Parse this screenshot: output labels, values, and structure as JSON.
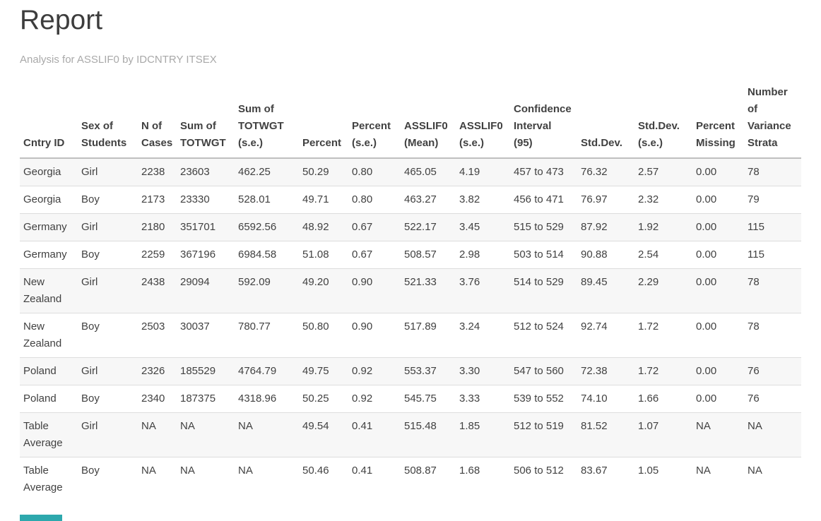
{
  "page": {
    "title": "Report",
    "subtitle": "Analysis for ASSLIF0 by IDCNTRY ITSEX"
  },
  "table": {
    "columns": [
      "Cntry ID",
      "Sex of Students",
      "N of Cases",
      "Sum of TOTWGT",
      "Sum of TOTWGT (s.e.)",
      "Percent",
      "Percent (s.e.)",
      "ASSLIF0 (Mean)",
      "ASSLIF0 (s.e.)",
      "Confidence Interval (95)",
      "Std.Dev.",
      "Std.Dev. (s.e.)",
      "Percent Missing",
      "Number of Variance Strata"
    ],
    "rows": [
      [
        "Georgia",
        "Girl",
        "2238",
        "23603",
        "462.25",
        "50.29",
        "0.80",
        "465.05",
        "4.19",
        "457 to 473",
        "76.32",
        "2.57",
        "0.00",
        "78"
      ],
      [
        "Georgia",
        "Boy",
        "2173",
        "23330",
        "528.01",
        "49.71",
        "0.80",
        "463.27",
        "3.82",
        "456 to 471",
        "76.97",
        "2.32",
        "0.00",
        "79"
      ],
      [
        "Germany",
        "Girl",
        "2180",
        "351701",
        "6592.56",
        "48.92",
        "0.67",
        "522.17",
        "3.45",
        "515 to 529",
        "87.92",
        "1.92",
        "0.00",
        "115"
      ],
      [
        "Germany",
        "Boy",
        "2259",
        "367196",
        "6984.58",
        "51.08",
        "0.67",
        "508.57",
        "2.98",
        "503 to 514",
        "90.88",
        "2.54",
        "0.00",
        "115"
      ],
      [
        "New Zealand",
        "Girl",
        "2438",
        "29094",
        "592.09",
        "49.20",
        "0.90",
        "521.33",
        "3.76",
        "514 to 529",
        "89.45",
        "2.29",
        "0.00",
        "78"
      ],
      [
        "New Zealand",
        "Boy",
        "2503",
        "30037",
        "780.77",
        "50.80",
        "0.90",
        "517.89",
        "3.24",
        "512 to 524",
        "92.74",
        "1.72",
        "0.00",
        "78"
      ],
      [
        "Poland",
        "Girl",
        "2326",
        "185529",
        "4764.79",
        "49.75",
        "0.92",
        "553.37",
        "3.30",
        "547 to 560",
        "72.38",
        "1.72",
        "0.00",
        "76"
      ],
      [
        "Poland",
        "Boy",
        "2340",
        "187375",
        "4318.96",
        "50.25",
        "0.92",
        "545.75",
        "3.33",
        "539 to 552",
        "74.10",
        "1.66",
        "0.00",
        "76"
      ],
      [
        "Table Average",
        "Girl",
        "NA",
        "NA",
        "NA",
        "49.54",
        "0.41",
        "515.48",
        "1.85",
        "512 to 519",
        "81.52",
        "1.07",
        "NA",
        "NA"
      ],
      [
        "Table Average",
        "Boy",
        "NA",
        "NA",
        "NA",
        "50.46",
        "0.41",
        "508.87",
        "1.68",
        "506 to 512",
        "83.67",
        "1.05",
        "NA",
        "NA"
      ]
    ]
  },
  "colors": {
    "title_text": "#3d3d3d",
    "subtitle_text": "#a9a9a9",
    "body_text": "#414141",
    "stripe_background": "#f7f7f7",
    "row_border": "#dddddd",
    "header_border": "#bfbfbf",
    "accent_teal": "#2da8ad"
  }
}
